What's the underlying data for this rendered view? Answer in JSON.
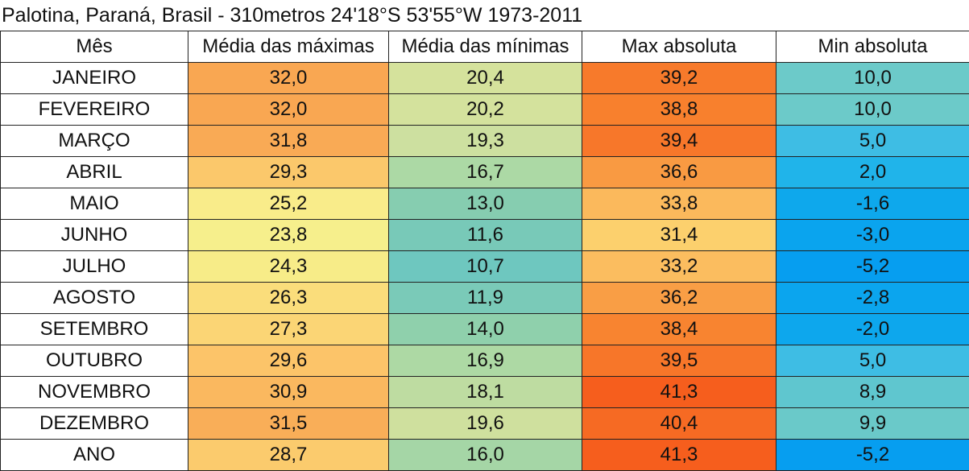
{
  "title": "Palotina, Paraná, Brasil - 310metros 24'18°S  53'55°W 1973-2011",
  "table": {
    "header": [
      "Mês",
      "Média das máximas",
      "Média das mínimas",
      "Max absoluta",
      "Min absoluta"
    ],
    "rows": [
      [
        "JANEIRO",
        "32,0",
        "20,4",
        "39,2",
        "10,0"
      ],
      [
        "FEVEREIRO",
        "32,0",
        "20,2",
        "38,8",
        "10,0"
      ],
      [
        "MARÇO",
        "31,8",
        "19,3",
        "39,4",
        "5,0"
      ],
      [
        "ABRIL",
        "29,3",
        "16,7",
        "36,6",
        "2,0"
      ],
      [
        "MAIO",
        "25,2",
        "13,0",
        "33,8",
        "-1,6"
      ],
      [
        "JUNHO",
        "23,8",
        "11,6",
        "31,4",
        "-3,0"
      ],
      [
        "JULHO",
        "24,3",
        "10,7",
        "33,2",
        "-5,2"
      ],
      [
        "AGOSTO",
        "26,3",
        "11,9",
        "36,2",
        "-2,8"
      ],
      [
        "SETEMBRO",
        "27,3",
        "14,0",
        "38,4",
        "-2,0"
      ],
      [
        "OUTUBRO",
        "29,6",
        "16,9",
        "39,5",
        "5,0"
      ],
      [
        "NOVEMBRO",
        "30,9",
        "18,1",
        "41,3",
        "8,9"
      ],
      [
        "DEZEMBRO",
        "31,5",
        "19,6",
        "40,4",
        "9,9"
      ],
      [
        "ANO",
        "28,7",
        "16,0",
        "41,3",
        "-5,2"
      ]
    ],
    "cell_colors": [
      [
        "#f9a752",
        "#d5e29c",
        "#f77a2b",
        "#6ccac9"
      ],
      [
        "#f9a752",
        "#d4e29d",
        "#f8802d",
        "#6ccac9"
      ],
      [
        "#f9aa55",
        "#cde0a0",
        "#f7772a",
        "#3ebde4"
      ],
      [
        "#fbc86b",
        "#acd9a5",
        "#f99a42",
        "#20b4ea"
      ],
      [
        "#f9ec8a",
        "#86cdb0",
        "#fbb95c",
        "#0ea8ec"
      ],
      [
        "#f6ef8c",
        "#78c9b8",
        "#fcd06d",
        "#0aa4ee"
      ],
      [
        "#f7ec88",
        "#6ec7bf",
        "#fbbd5f",
        "#069ef0"
      ],
      [
        "#fadd7b",
        "#7acab8",
        "#f99e45",
        "#0ba5ee"
      ],
      [
        "#fbd575",
        "#8fd0ac",
        "#f88430",
        "#0da7ed"
      ],
      [
        "#fcc469",
        "#add9a4",
        "#f77629",
        "#3ebde4"
      ],
      [
        "#fab85f",
        "#bedca1",
        "#f65e1d",
        "#5fc6cf"
      ],
      [
        "#f9ae58",
        "#cfe09e",
        "#f66a23",
        "#6ac9c9"
      ],
      [
        "#fbcb6d",
        "#a5d6a6",
        "#f65e1d",
        "#069ef0"
      ]
    ]
  }
}
